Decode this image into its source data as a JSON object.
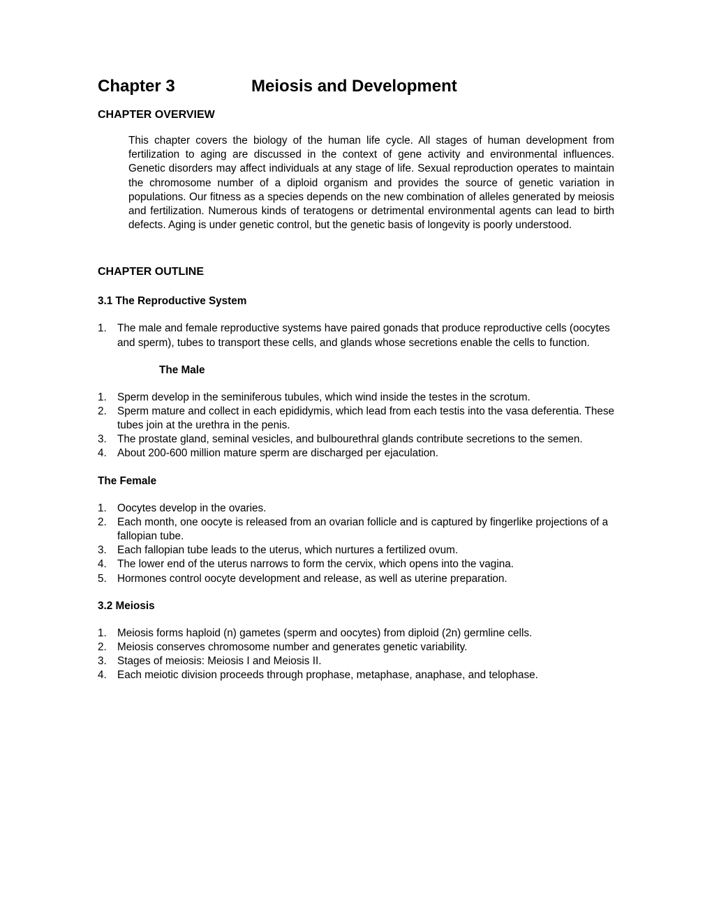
{
  "chapter": {
    "number_label": "Chapter 3",
    "title": "Meiosis and Development"
  },
  "overview": {
    "heading": "CHAPTER  OVERVIEW",
    "text": "This chapter covers the biology of the human life cycle.  All stages of human development from fertilization to aging are discussed in the context of gene activity and environmental influences. Genetic disorders may affect individuals at any stage of life. Sexual reproduction operates to maintain the chromosome number of a diploid organism and provides the source of genetic variation in populations. Our fitness as a species depends on the new combination of alleles generated by meiosis and fertilization. Numerous kinds of teratogens or detrimental environmental agents can lead to birth defects. Aging is under genetic control, but the genetic basis of longevity is poorly understood."
  },
  "outline": {
    "heading": "CHAPTER OUTLINE",
    "sections": [
      {
        "title": "3.1 The Reproductive System",
        "intro_items": [
          "The male and female reproductive systems have paired gonads that produce reproductive cells (oocytes and sperm), tubes to transport these cells, and glands whose secretions enable the cells to function."
        ],
        "subsections": [
          {
            "heading": "The Male",
            "heading_style": "indented",
            "justified": true,
            "items": [
              "Sperm develop in the seminiferous tubules, which wind inside the testes in the scrotum.",
              "Sperm mature and collect in each epididymis, which lead from each testis into the vasa deferentia. These tubes join at the urethra in the penis.",
              "The prostate gland, seminal vesicles, and bulbourethral glands contribute secretions to the semen.",
              "About 200-600 million mature sperm are discharged per ejaculation."
            ]
          },
          {
            "heading": "The Female",
            "heading_style": "left",
            "justified": false,
            "items": [
              "Oocytes develop in the ovaries.",
              "Each month, one oocyte is released from an ovarian follicle and is captured by fingerlike projections of a fallopian tube.",
              "Each fallopian tube leads to the uterus, which nurtures a fertilized ovum.",
              "The lower end of the uterus narrows to form the cervix, which opens into the vagina.",
              "Hormones control oocyte development and release, as well as uterine preparation."
            ]
          }
        ]
      },
      {
        "title": "3.2 Meiosis",
        "intro_items": [
          "Meiosis forms haploid (n) gametes (sperm and oocytes) from diploid (2n) germline cells.",
          "Meiosis conserves chromosome number and generates genetic variability.",
          "Stages of meiosis: Meiosis I and Meiosis II.",
          "Each meiotic division proceeds through prophase, metaphase, anaphase, and telophase."
        ],
        "subsections": []
      }
    ]
  }
}
